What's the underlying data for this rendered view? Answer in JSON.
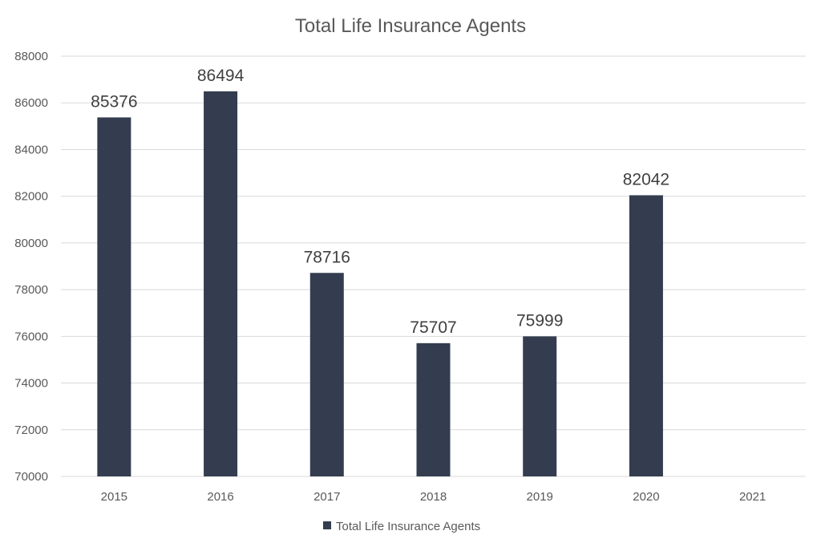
{
  "chart_data": {
    "type": "bar",
    "title": "Total Life Insurance Agents",
    "categories": [
      "2015",
      "2016",
      "2017",
      "2018",
      "2019",
      "2020",
      "2021"
    ],
    "series": [
      {
        "name": "Total Life Insurance Agents",
        "values": [
          85376,
          86494,
          78716,
          75707,
          75999,
          82042,
          null
        ],
        "color": "#333d4f"
      }
    ],
    "xlabel": "",
    "ylabel": "",
    "ylim": [
      70000,
      88000
    ],
    "yticks": [
      70000,
      72000,
      74000,
      76000,
      78000,
      80000,
      82000,
      84000,
      86000,
      88000
    ],
    "grid": true,
    "data_labels": true,
    "legend": "bottom"
  }
}
